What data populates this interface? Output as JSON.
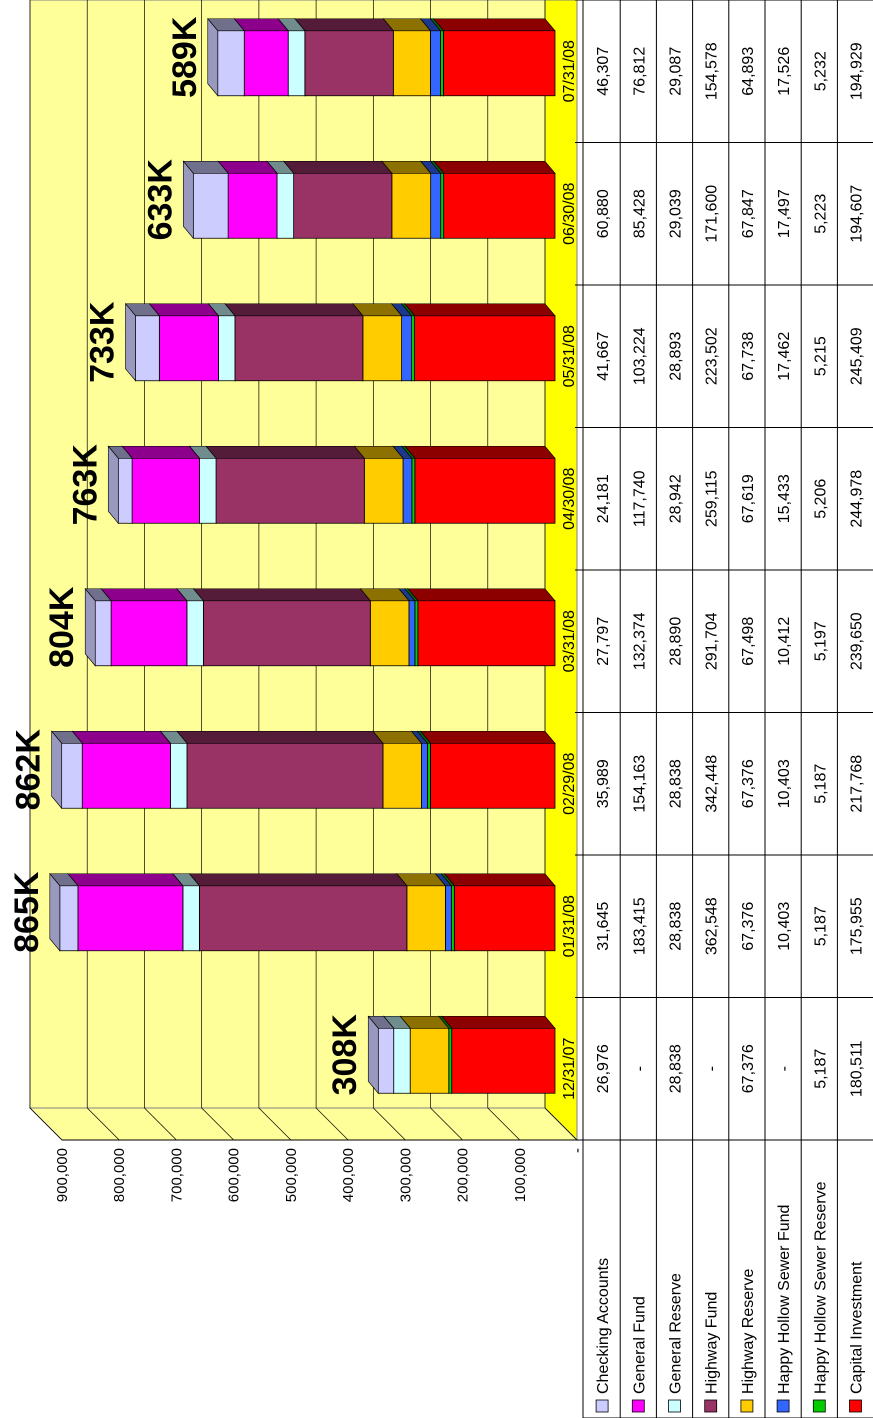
{
  "chart_data": {
    "type": "bar",
    "stacked": true,
    "three_d": true,
    "categories": [
      "12/31/07",
      "01/31/08",
      "02/29/08",
      "03/31/08",
      "04/30/08",
      "05/31/08",
      "06/30/08",
      "07/31/08"
    ],
    "totals": [
      "308K",
      "865K",
      "862K",
      "804K",
      "763K",
      "733K",
      "633K",
      "589K"
    ],
    "ylim": [
      0,
      900000
    ],
    "y_ticks": [
      "-",
      "100,000",
      "200,000",
      "300,000",
      "400,000",
      "500,000",
      "600,000",
      "700,000",
      "800,000",
      "900,000"
    ],
    "grid": true,
    "wall_color": "#FFFF99",
    "floor_color": "#FFFF00",
    "series": [
      {
        "name": "Capital Investment",
        "color": "#FF0000",
        "values": [
          180511,
          175955,
          217768,
          239650,
          244978,
          245409,
          194607,
          194929
        ],
        "labels": [
          "180,511",
          "175,955",
          "217,768",
          "239,650",
          "244,978",
          "245,409",
          "194,607",
          "194,929"
        ]
      },
      {
        "name": "Happy Hollow Sewer Reserve",
        "color": "#00CC00",
        "values": [
          5187,
          5187,
          5187,
          5197,
          5206,
          5215,
          5223,
          5232
        ],
        "labels": [
          "5,187",
          "5,187",
          "5,187",
          "5,197",
          "5,206",
          "5,215",
          "5,223",
          "5,232"
        ]
      },
      {
        "name": "Happy Hollow Sewer Fund",
        "color": "#3366FF",
        "values": [
          0,
          10403,
          10403,
          10412,
          15433,
          17462,
          17497,
          17526
        ],
        "labels": [
          "-",
          "10,403",
          "10,403",
          "10,412",
          "15,433",
          "17,462",
          "17,497",
          "17,526"
        ]
      },
      {
        "name": "Highway Reserve",
        "color": "#FFCC00",
        "values": [
          67376,
          67376,
          67376,
          67498,
          67619,
          67738,
          67847,
          64893
        ],
        "labels": [
          "67,376",
          "67,376",
          "67,376",
          "67,498",
          "67,619",
          "67,738",
          "67,847",
          "64,893"
        ]
      },
      {
        "name": "Highway Fund",
        "color": "#993366",
        "values": [
          0,
          362548,
          342448,
          291704,
          259115,
          223502,
          171600,
          154578
        ],
        "labels": [
          "-",
          "362,548",
          "342,448",
          "291,704",
          "259,115",
          "223,502",
          "171,600",
          "154,578"
        ]
      },
      {
        "name": "General Reserve",
        "color": "#CCFFFF",
        "values": [
          28838,
          28838,
          28838,
          28890,
          28942,
          28893,
          29039,
          29087
        ],
        "labels": [
          "28,838",
          "28,838",
          "28,838",
          "28,890",
          "28,942",
          "28,893",
          "29,039",
          "29,087"
        ]
      },
      {
        "name": "General Fund",
        "color": "#FF00FF",
        "values": [
          0,
          183415,
          154163,
          132374,
          117740,
          103224,
          85428,
          76812
        ],
        "labels": [
          "-",
          "183,415",
          "154,163",
          "132,374",
          "117,740",
          "103,224",
          "85,428",
          "76,812"
        ]
      },
      {
        "name": "Checking Accounts",
        "color": "#CCCCFF",
        "values": [
          26976,
          31645,
          35989,
          27797,
          24181,
          41667,
          60880,
          46307
        ],
        "labels": [
          "26,976",
          "31,645",
          "35,989",
          "27,797",
          "24,181",
          "41,667",
          "60,880",
          "46,307"
        ]
      }
    ],
    "table_rows": [
      {
        "name": "Checking Accounts",
        "color": "#CCCCFF",
        "labels": [
          "26,976",
          "31,645",
          "35,989",
          "27,797",
          "24,181",
          "41,667",
          "60,880",
          "46,307"
        ]
      },
      {
        "name": "General Fund",
        "color": "#FF00FF",
        "labels": [
          "-",
          "183,415",
          "154,163",
          "132,374",
          "117,740",
          "103,224",
          "85,428",
          "76,812"
        ]
      },
      {
        "name": "General Reserve",
        "color": "#CCFFFF",
        "labels": [
          "28,838",
          "28,838",
          "28,838",
          "28,890",
          "28,942",
          "28,893",
          "29,039",
          "29,087"
        ]
      },
      {
        "name": "Highway Fund",
        "color": "#993366",
        "labels": [
          "-",
          "362,548",
          "342,448",
          "291,704",
          "259,115",
          "223,502",
          "171,600",
          "154,578"
        ]
      },
      {
        "name": "Highway Reserve",
        "color": "#FFCC00",
        "labels": [
          "67,376",
          "67,376",
          "67,376",
          "67,498",
          "67,619",
          "67,738",
          "67,847",
          "64,893"
        ]
      },
      {
        "name": "Happy Hollow Sewer Fund",
        "color": "#3366FF",
        "labels": [
          "-",
          "10,403",
          "10,403",
          "10,412",
          "15,433",
          "17,462",
          "17,497",
          "17,526"
        ]
      },
      {
        "name": "Happy Hollow Sewer Reserve",
        "color": "#00CC00",
        "labels": [
          "5,187",
          "5,187",
          "5,187",
          "5,197",
          "5,206",
          "5,215",
          "5,223",
          "5,232"
        ]
      },
      {
        "name": "Capital Investment",
        "color": "#FF0000",
        "labels": [
          "180,511",
          "175,955",
          "217,768",
          "239,650",
          "244,978",
          "245,409",
          "194,607",
          "194,929"
        ]
      }
    ]
  }
}
